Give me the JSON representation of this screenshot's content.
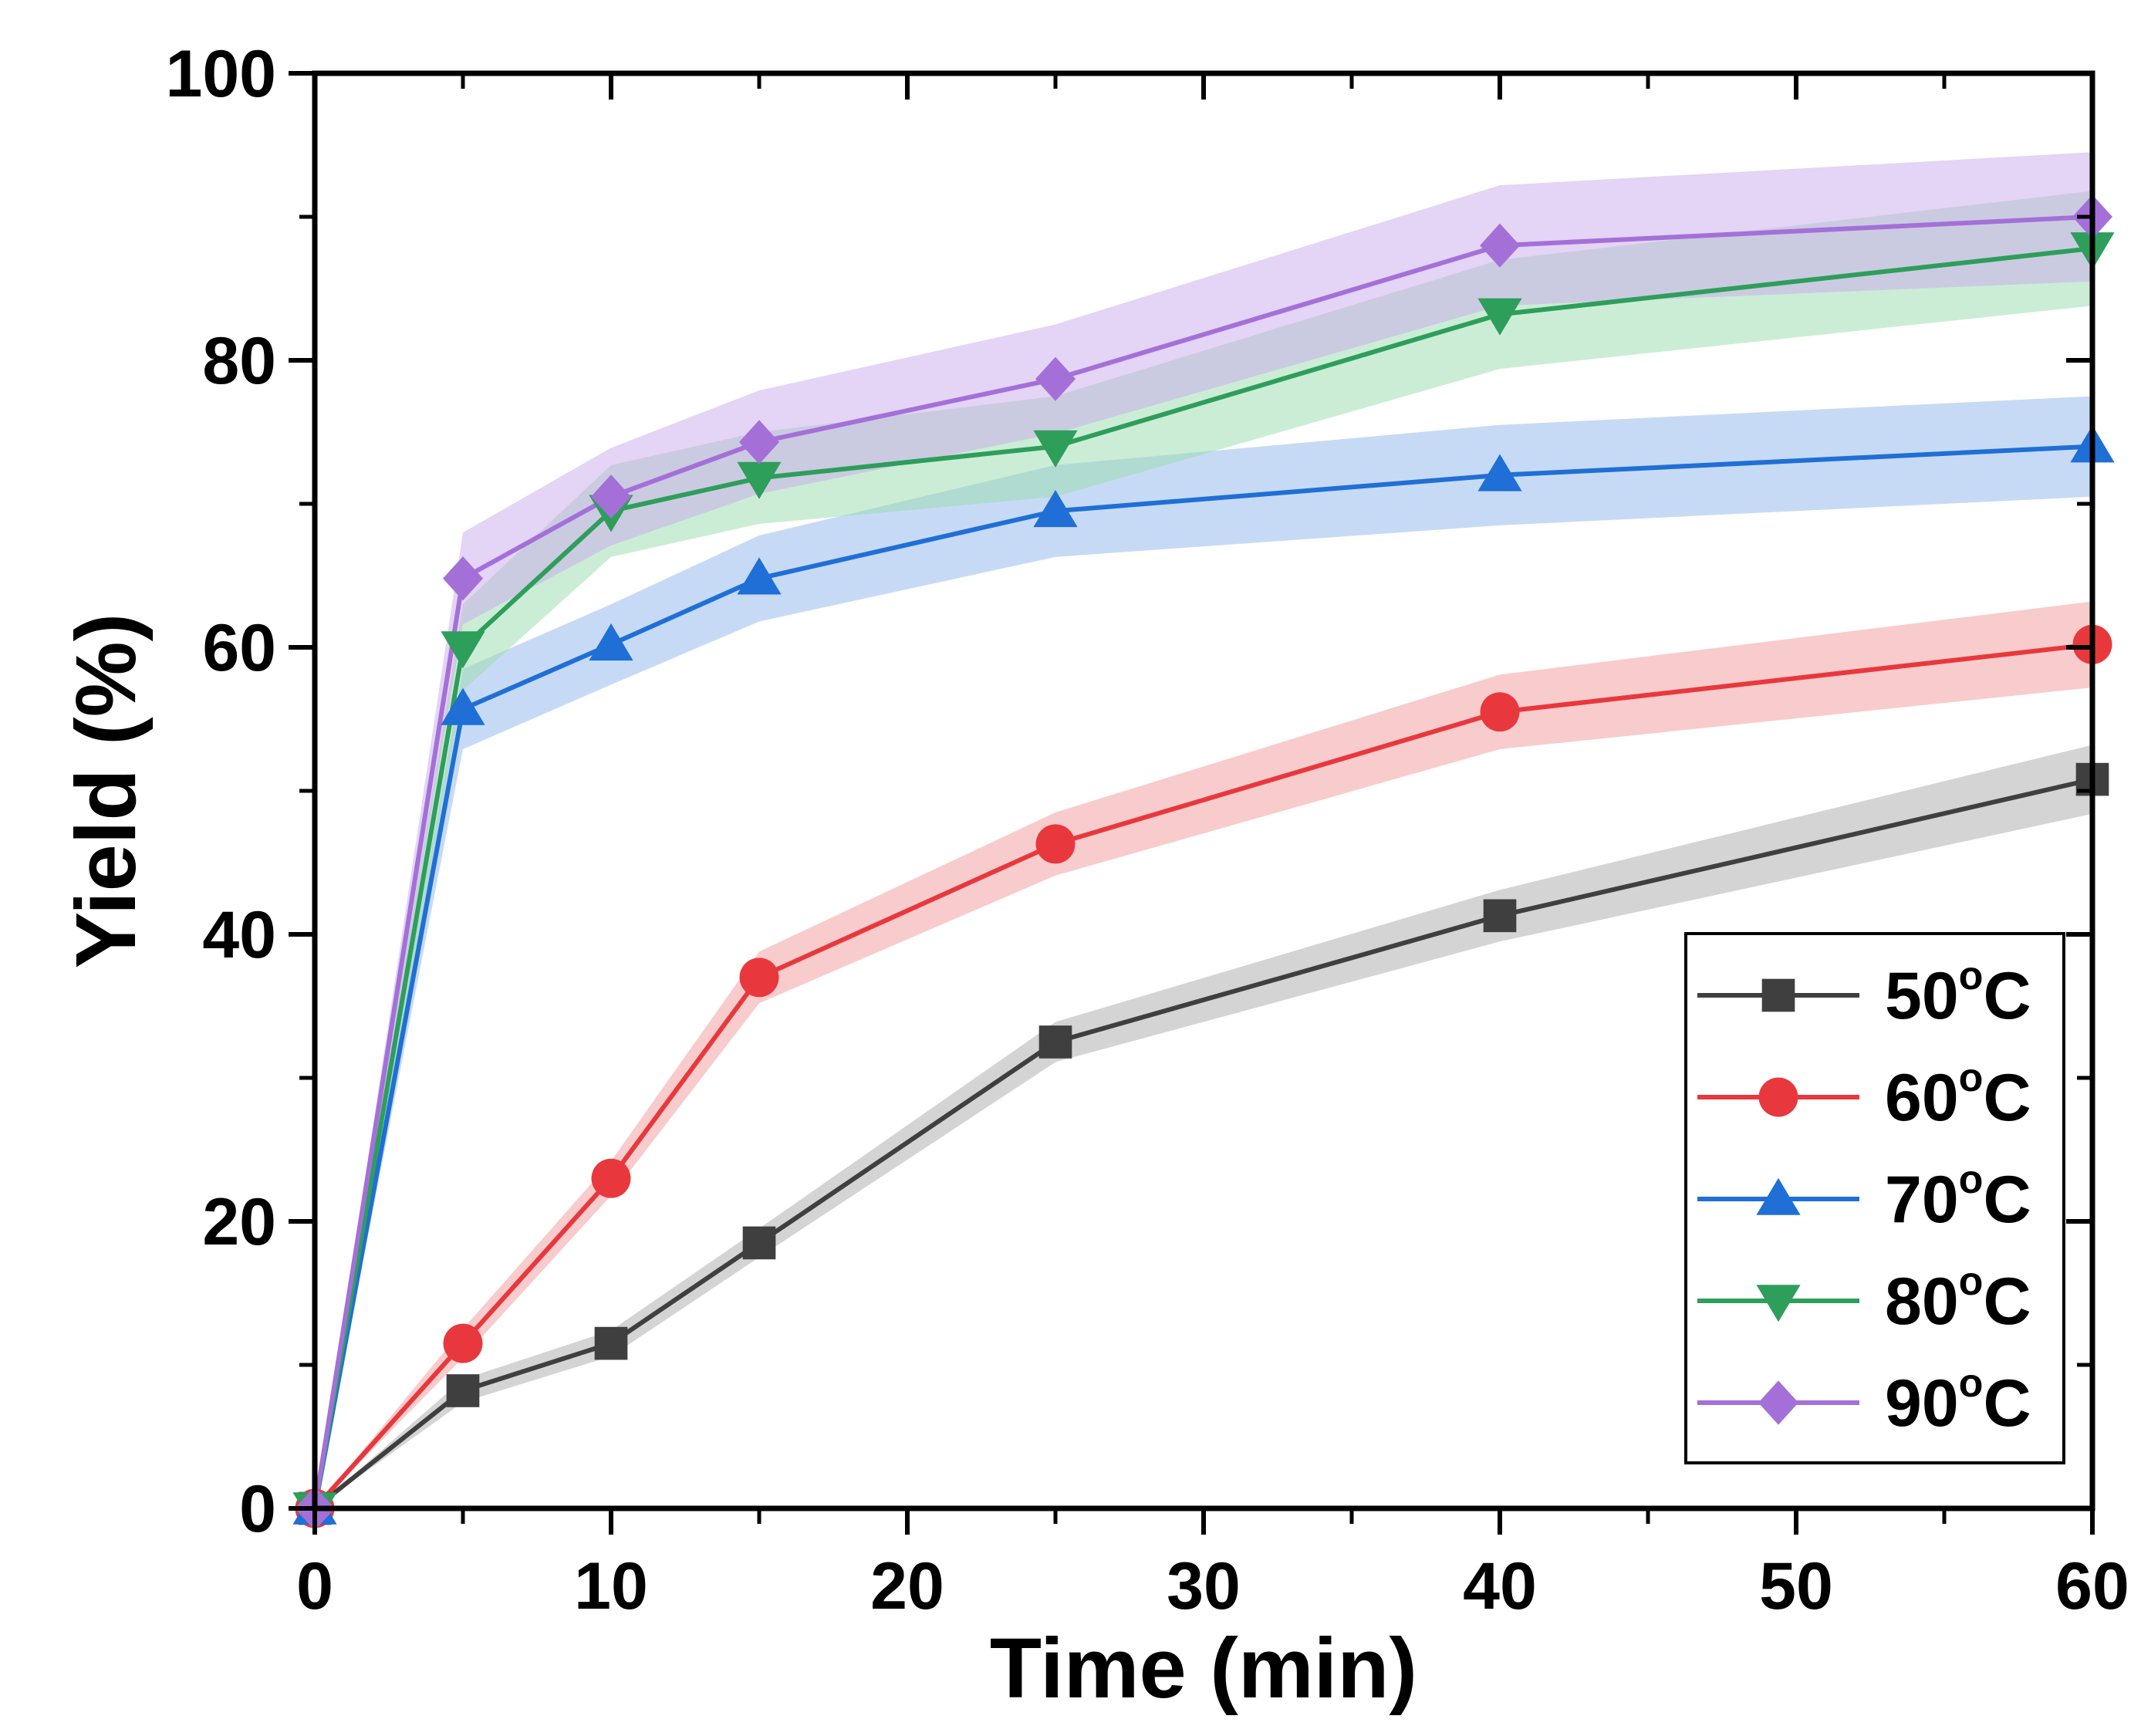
{
  "chart_data": {
    "type": "line",
    "title": "",
    "xlabel": "Time (min)",
    "ylabel": "Yield (%)",
    "xlim": [
      0,
      60
    ],
    "ylim": [
      0,
      100
    ],
    "x_ticks": [
      0,
      10,
      20,
      30,
      40,
      50,
      60
    ],
    "y_ticks": [
      0,
      20,
      40,
      60,
      80,
      100
    ],
    "grid": false,
    "legend_position": "bottom-right",
    "x": [
      0,
      5,
      10,
      15,
      25,
      40,
      60
    ],
    "series": [
      {
        "name": "50",
        "unit": "oC",
        "color": "#3f3f3f",
        "band_color": "#a9a9a9",
        "marker": "square",
        "values": [
          0,
          8.2,
          11.5,
          18.5,
          32.5,
          41.3,
          50.8
        ],
        "band": [
          0,
          0.8,
          0.9,
          1.0,
          1.4,
          1.8,
          2.4
        ]
      },
      {
        "name": "60",
        "unit": "oC",
        "color": "#e8383d",
        "band_color": "#f19a9a",
        "marker": "circle",
        "values": [
          0,
          11.5,
          23.0,
          37.0,
          46.3,
          55.5,
          60.2
        ],
        "band": [
          0,
          1.0,
          1.2,
          1.8,
          2.2,
          2.6,
          3.0
        ]
      },
      {
        "name": "70",
        "unit": "oC",
        "color": "#1f6fd6",
        "band_color": "#8fb6ec",
        "marker": "triangle-up",
        "values": [
          0,
          55.7,
          60.2,
          64.8,
          69.5,
          72.0,
          74.0
        ],
        "band": [
          0,
          2.8,
          2.8,
          3.0,
          3.2,
          3.5,
          3.5
        ]
      },
      {
        "name": "80",
        "unit": "oC",
        "color": "#2e9e5b",
        "band_color": "#97dcae",
        "marker": "triangle-down",
        "values": [
          0,
          60.0,
          69.5,
          71.8,
          74.0,
          83.2,
          87.8
        ],
        "band": [
          0,
          3.0,
          3.2,
          3.2,
          3.5,
          3.8,
          4.0
        ]
      },
      {
        "name": "90",
        "unit": "oC",
        "color": "#a470d8",
        "band_color": "#caa9ec",
        "marker": "diamond",
        "values": [
          0,
          64.8,
          70.5,
          74.3,
          78.7,
          88.0,
          90.0
        ],
        "band": [
          0,
          3.2,
          3.4,
          3.6,
          3.8,
          4.2,
          4.5
        ]
      }
    ]
  }
}
